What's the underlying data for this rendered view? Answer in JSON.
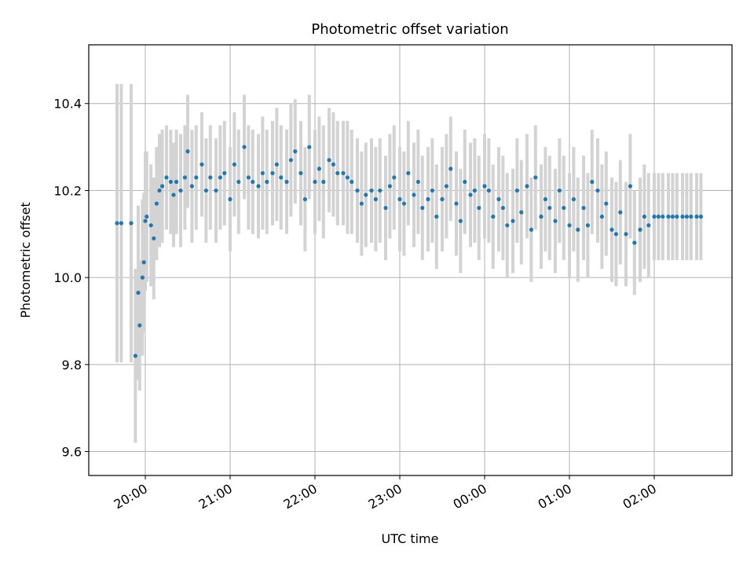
{
  "chart_data": {
    "type": "scatter",
    "title": "Photometric offset variation",
    "xlabel": "UTC time",
    "ylabel": "Photometric offset",
    "x_ticks": [
      "20:00",
      "21:00",
      "22:00",
      "23:00",
      "00:00",
      "01:00",
      "02:00"
    ],
    "x_tick_hours": [
      20,
      21,
      22,
      23,
      24,
      25,
      26
    ],
    "y_ticks": [
      "9.6",
      "9.8",
      "10.0",
      "10.2",
      "10.4"
    ],
    "y_tick_values": [
      9.6,
      9.8,
      10.0,
      10.2,
      10.4
    ],
    "xlim": [
      "19:20",
      "02:55"
    ],
    "ylim": [
      9.545,
      10.535
    ],
    "grid": true,
    "colors": {
      "points": "#1f77b4",
      "error_bars": "#d3d3d3",
      "grid": "#b0b0b0"
    },
    "series": [
      {
        "error_bars": true,
        "x": [
          "19:40",
          "19:43",
          "19:50",
          "19:53",
          "19:55",
          "19:56",
          "19:58",
          "19:59",
          "20:00",
          "20:01",
          "20:04",
          "20:06",
          "20:08",
          "20:10",
          "20:12",
          "20:15",
          "20:18",
          "20:20",
          "20:22",
          "20:25",
          "20:28",
          "20:30",
          "20:33",
          "20:36",
          "20:40",
          "20:43",
          "20:46",
          "20:50",
          "20:53",
          "20:56",
          "21:00",
          "21:03",
          "21:06",
          "21:10",
          "21:13",
          "21:16",
          "21:20",
          "21:23",
          "21:26",
          "21:30",
          "21:33",
          "21:36",
          "21:40",
          "21:43",
          "21:46",
          "21:50",
          "21:53",
          "21:56",
          "22:00",
          "22:03",
          "22:06",
          "22:10",
          "22:13",
          "22:16",
          "22:20",
          "22:23",
          "22:26",
          "22:30",
          "22:33",
          "22:36",
          "22:40",
          "22:43",
          "22:46",
          "22:50",
          "22:53",
          "22:56",
          "23:00",
          "23:03",
          "23:06",
          "23:10",
          "23:13",
          "23:16",
          "23:20",
          "23:23",
          "23:26",
          "23:30",
          "23:33",
          "23:36",
          "23:40",
          "23:43",
          "23:46",
          "23:50",
          "23:53",
          "23:56",
          "00:00",
          "00:03",
          "00:06",
          "00:10",
          "00:13",
          "00:16",
          "00:20",
          "00:23",
          "00:26",
          "00:30",
          "00:33",
          "00:36",
          "00:40",
          "00:43",
          "00:46",
          "00:50",
          "00:53",
          "00:56",
          "01:00",
          "01:03",
          "01:06",
          "01:10",
          "01:13",
          "01:16",
          "01:20",
          "01:23",
          "01:26",
          "01:30",
          "01:33",
          "01:36",
          "01:40",
          "01:43",
          "01:46",
          "01:50",
          "01:53",
          "01:56",
          "02:00",
          "02:03",
          "02:06",
          "02:10",
          "02:13",
          "02:16",
          "02:20",
          "02:23",
          "02:26",
          "02:30",
          "02:33"
        ],
        "y": [
          10.125,
          10.125,
          10.125,
          9.82,
          9.965,
          9.89,
          10.0,
          10.035,
          10.13,
          10.14,
          10.12,
          10.09,
          10.17,
          10.2,
          10.21,
          10.23,
          10.22,
          10.19,
          10.22,
          10.2,
          10.23,
          10.29,
          10.21,
          10.23,
          10.26,
          10.2,
          10.23,
          10.2,
          10.23,
          10.24,
          10.18,
          10.26,
          10.22,
          10.3,
          10.23,
          10.22,
          10.21,
          10.24,
          10.22,
          10.24,
          10.26,
          10.23,
          10.22,
          10.27,
          10.29,
          10.24,
          10.18,
          10.3,
          10.22,
          10.25,
          10.22,
          10.27,
          10.26,
          10.24,
          10.24,
          10.23,
          10.22,
          10.2,
          10.17,
          10.19,
          10.2,
          10.18,
          10.2,
          10.16,
          10.21,
          10.23,
          10.18,
          10.17,
          10.24,
          10.19,
          10.22,
          10.16,
          10.18,
          10.2,
          10.14,
          10.18,
          10.21,
          10.25,
          10.17,
          10.13,
          10.22,
          10.19,
          10.2,
          10.16,
          10.21,
          10.2,
          10.14,
          10.18,
          10.16,
          10.12,
          10.13,
          10.2,
          10.15,
          10.21,
          10.11,
          10.23,
          10.14,
          10.18,
          10.16,
          10.13,
          10.2,
          10.16,
          10.12,
          10.18,
          10.11,
          10.16,
          10.12,
          10.22,
          10.2,
          10.14,
          10.17,
          10.11,
          10.1,
          10.15,
          10.1,
          10.21,
          10.08,
          10.11,
          10.14,
          10.12,
          10.14,
          10.14,
          10.14,
          10.14,
          10.14,
          10.14,
          10.14,
          10.14,
          10.14,
          10.14,
          10.14
        ],
        "y_err": [
          0.32,
          0.32,
          0.32,
          0.2,
          0.2,
          0.15,
          0.18,
          0.16,
          0.16,
          0.15,
          0.14,
          0.14,
          0.13,
          0.13,
          0.13,
          0.12,
          0.12,
          0.12,
          0.12,
          0.13,
          0.12,
          0.13,
          0.13,
          0.12,
          0.12,
          0.12,
          0.12,
          0.12,
          0.12,
          0.12,
          0.12,
          0.12,
          0.12,
          0.12,
          0.12,
          0.12,
          0.12,
          0.13,
          0.12,
          0.12,
          0.13,
          0.12,
          0.12,
          0.13,
          0.12,
          0.12,
          0.12,
          0.12,
          0.12,
          0.12,
          0.13,
          0.12,
          0.12,
          0.12,
          0.12,
          0.13,
          0.12,
          0.12,
          0.12,
          0.12,
          0.12,
          0.12,
          0.12,
          0.12,
          0.12,
          0.12,
          0.12,
          0.12,
          0.12,
          0.12,
          0.12,
          0.12,
          0.12,
          0.12,
          0.12,
          0.12,
          0.12,
          0.12,
          0.12,
          0.12,
          0.12,
          0.12,
          0.12,
          0.12,
          0.12,
          0.12,
          0.12,
          0.12,
          0.12,
          0.12,
          0.12,
          0.12,
          0.12,
          0.12,
          0.12,
          0.12,
          0.12,
          0.12,
          0.12,
          0.12,
          0.12,
          0.12,
          0.12,
          0.12,
          0.12,
          0.12,
          0.12,
          0.12,
          0.12,
          0.12,
          0.12,
          0.12,
          0.12,
          0.12,
          0.12,
          0.12,
          0.12,
          0.12,
          0.12,
          0.12,
          0.1,
          0.1,
          0.1,
          0.1,
          0.1,
          0.1,
          0.1,
          0.1,
          0.1,
          0.1,
          0.1
        ]
      }
    ]
  }
}
